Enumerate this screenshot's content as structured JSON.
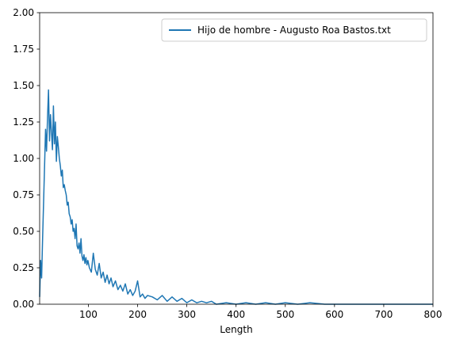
{
  "chart_data": {
    "type": "line",
    "title": "",
    "xlabel": "Length",
    "ylabel": "",
    "xlim": [
      1,
      800
    ],
    "ylim": [
      0,
      2.0
    ],
    "xticks": [
      100,
      200,
      300,
      400,
      500,
      600,
      700,
      800
    ],
    "yticks": [
      0.0,
      0.25,
      0.5,
      0.75,
      1.0,
      1.25,
      1.5,
      1.75,
      2.0
    ],
    "xtick_labels": [
      "100",
      "200",
      "300",
      "400",
      "500",
      "600",
      "700",
      "800"
    ],
    "ytick_labels": [
      "0.00",
      "0.25",
      "0.50",
      "0.75",
      "1.00",
      "1.25",
      "1.50",
      "1.75",
      "2.00"
    ],
    "grid": false,
    "legend": {
      "position": "upper right",
      "entries": [
        "Hijo de hombre - Augusto Roa Bastos.txt"
      ]
    },
    "series": [
      {
        "name": "Hijo de hombre - Augusto Roa Bastos.txt",
        "color": "#1f77b4",
        "x": [
          1,
          3,
          5,
          7,
          9,
          11,
          13,
          15,
          17,
          19,
          21,
          23,
          25,
          27,
          29,
          31,
          33,
          35,
          37,
          39,
          41,
          43,
          45,
          47,
          49,
          51,
          53,
          55,
          57,
          59,
          61,
          63,
          65,
          67,
          69,
          71,
          73,
          75,
          77,
          79,
          81,
          83,
          85,
          87,
          89,
          91,
          93,
          95,
          97,
          99,
          102,
          106,
          110,
          114,
          118,
          122,
          126,
          130,
          134,
          138,
          142,
          146,
          150,
          155,
          160,
          165,
          170,
          175,
          180,
          185,
          190,
          195,
          200,
          205,
          210,
          215,
          220,
          230,
          240,
          250,
          260,
          270,
          280,
          290,
          300,
          310,
          320,
          330,
          340,
          350,
          360,
          380,
          400,
          420,
          440,
          460,
          480,
          500,
          525,
          550,
          580,
          600,
          630,
          665,
          700,
          750,
          800
        ],
        "y": [
          0.05,
          0.3,
          0.18,
          0.45,
          0.7,
          0.95,
          1.2,
          1.05,
          1.28,
          1.47,
          1.12,
          1.3,
          1.18,
          1.06,
          1.36,
          1.1,
          1.25,
          0.98,
          1.15,
          1.08,
          1.0,
          0.95,
          0.88,
          0.92,
          0.8,
          0.82,
          0.78,
          0.75,
          0.68,
          0.7,
          0.62,
          0.6,
          0.55,
          0.58,
          0.5,
          0.52,
          0.45,
          0.55,
          0.4,
          0.38,
          0.42,
          0.35,
          0.45,
          0.33,
          0.3,
          0.34,
          0.28,
          0.32,
          0.27,
          0.3,
          0.25,
          0.22,
          0.35,
          0.24,
          0.2,
          0.28,
          0.18,
          0.22,
          0.15,
          0.2,
          0.14,
          0.18,
          0.12,
          0.16,
          0.1,
          0.13,
          0.09,
          0.14,
          0.07,
          0.1,
          0.06,
          0.09,
          0.16,
          0.05,
          0.07,
          0.04,
          0.06,
          0.05,
          0.03,
          0.06,
          0.02,
          0.05,
          0.02,
          0.04,
          0.01,
          0.03,
          0.01,
          0.02,
          0.01,
          0.02,
          0.0,
          0.01,
          0.0,
          0.01,
          0.0,
          0.01,
          0.0,
          0.01,
          0.0,
          0.01,
          0.0,
          0.0,
          0.0,
          0.0,
          0.0,
          0.0,
          0.0
        ]
      }
    ]
  }
}
